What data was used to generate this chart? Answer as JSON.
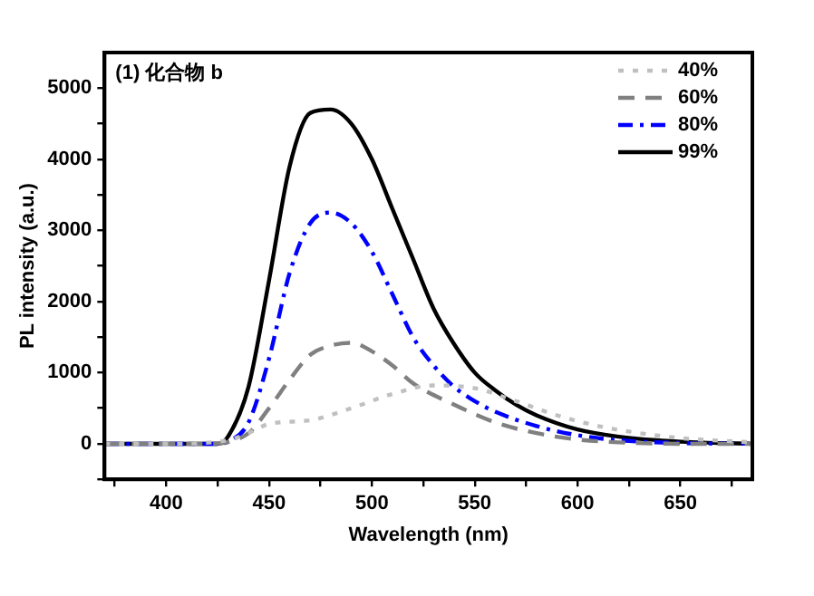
{
  "chart_data": {
    "type": "line",
    "xlabel": "Wavelength (nm)",
    "ylabel": "PL intensity (a.u.)",
    "annotations": [
      "(1) 化合物 b"
    ],
    "xlim": [
      370,
      685
    ],
    "ylim": [
      -500,
      5500
    ],
    "xticks": [
      {
        "value": 375,
        "label": null
      },
      400,
      {
        "value": 425,
        "label": null
      },
      450,
      {
        "value": 475,
        "label": null
      },
      500,
      {
        "value": 525,
        "label": null
      },
      550,
      {
        "value": 575,
        "label": null
      },
      600,
      {
        "value": 625,
        "label": null
      },
      650,
      {
        "value": 675,
        "label": null
      }
    ],
    "yticks": [
      {
        "value": -500,
        "label": null
      },
      0,
      {
        "value": 500,
        "label": null
      },
      1000,
      {
        "value": 1500,
        "label": null
      },
      2000,
      {
        "value": 2500,
        "label": null
      },
      3000,
      {
        "value": 3500,
        "label": null
      },
      4000,
      {
        "value": 4500,
        "label": null
      },
      5000
    ],
    "grid": false,
    "legend": "top right",
    "marker": "none",
    "series": [
      {
        "name": "40%",
        "color": "#c0c0c0",
        "line_style": "dotted",
        "x": [
          370,
          400,
          430,
          440,
          450,
          470,
          490,
          510,
          530,
          550,
          570,
          590,
          610,
          630,
          650,
          685
        ],
        "values": [
          0,
          0,
          50,
          150,
          280,
          330,
          500,
          700,
          820,
          780,
          600,
          400,
          250,
          150,
          80,
          20
        ]
      },
      {
        "name": "60%",
        "color": "#808080",
        "line_style": "dashed",
        "x": [
          370,
          420,
          440,
          450,
          460,
          470,
          480,
          490,
          500,
          510,
          520,
          540,
          560,
          580,
          600,
          620,
          650,
          685
        ],
        "values": [
          0,
          0,
          150,
          500,
          900,
          1250,
          1380,
          1420,
          1300,
          1100,
          850,
          550,
          300,
          150,
          60,
          20,
          0,
          0
        ]
      },
      {
        "name": "80%",
        "color": "#0000ff",
        "line_style": "dashdot",
        "x": [
          370,
          425,
          430,
          440,
          450,
          460,
          470,
          480,
          490,
          500,
          510,
          520,
          530,
          540,
          550,
          560,
          580,
          600,
          620,
          650,
          685
        ],
        "values": [
          0,
          0,
          30,
          300,
          1200,
          2400,
          3100,
          3250,
          3100,
          2700,
          2100,
          1500,
          1100,
          800,
          600,
          450,
          250,
          120,
          50,
          10,
          0
        ]
      },
      {
        "name": "99%",
        "color": "#000000",
        "line_style": "solid",
        "x": [
          370,
          425,
          430,
          440,
          450,
          460,
          470,
          480,
          490,
          500,
          510,
          520,
          530,
          540,
          550,
          560,
          570,
          580,
          600,
          620,
          650,
          685
        ],
        "values": [
          0,
          0,
          100,
          800,
          2300,
          3900,
          4650,
          4700,
          4500,
          4000,
          3300,
          2600,
          1900,
          1400,
          1000,
          750,
          550,
          400,
          200,
          100,
          30,
          0
        ]
      }
    ]
  }
}
